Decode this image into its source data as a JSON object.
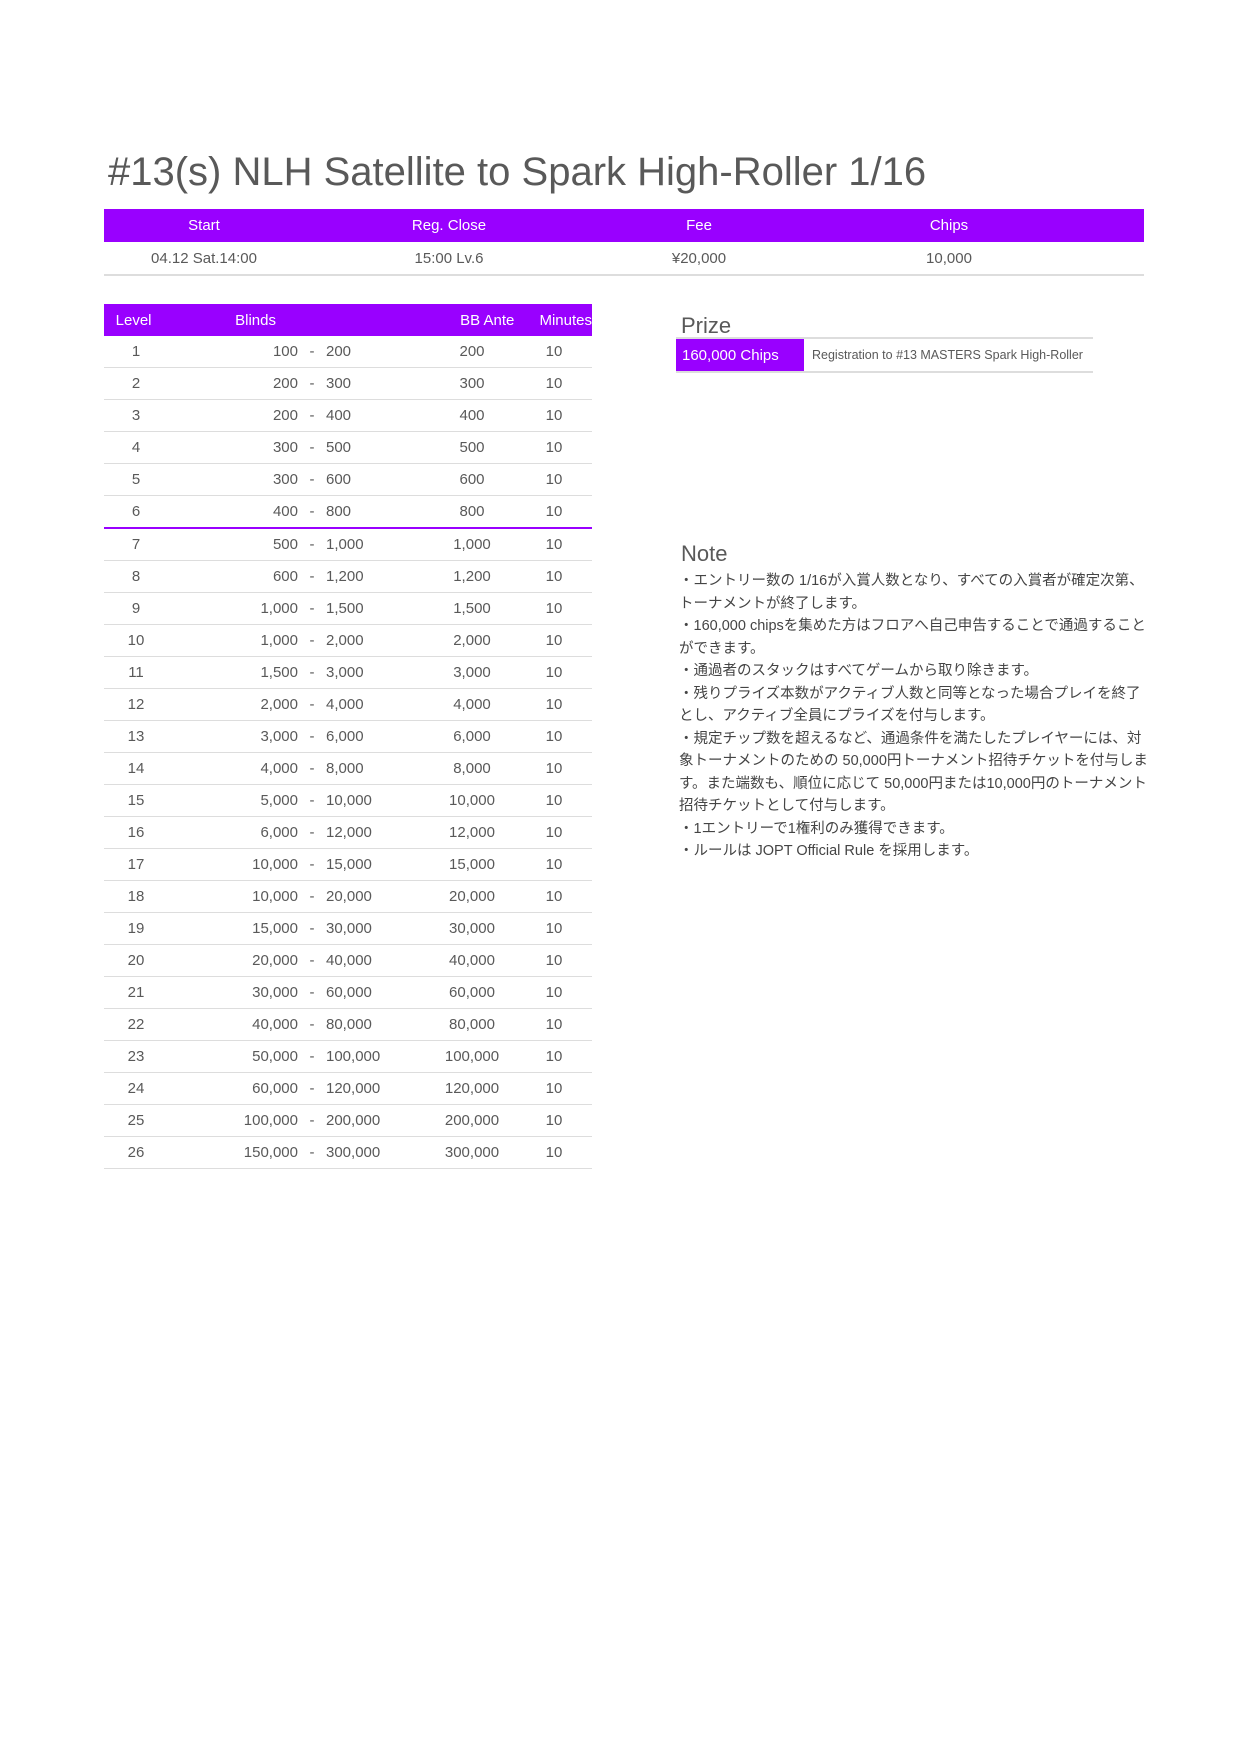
{
  "title": "#13(s) NLH Satellite to Spark High-Roller 1/16",
  "info": {
    "headers": [
      "Start",
      "Reg. Close",
      "Fee",
      "Chips"
    ],
    "values": [
      "04.12 Sat.14:00",
      "15:00 Lv.6",
      "¥20,000",
      "10,000"
    ]
  },
  "structure": {
    "headers": {
      "level": "Level",
      "blinds": "Blinds",
      "ante": "BB Ante",
      "minutes": "Minutes"
    },
    "reg_close_after_level": 6,
    "rows": [
      {
        "level": "1",
        "sb": "100",
        "bb": "200",
        "ante": "200",
        "minutes": "10"
      },
      {
        "level": "2",
        "sb": "200",
        "bb": "300",
        "ante": "300",
        "minutes": "10"
      },
      {
        "level": "3",
        "sb": "200",
        "bb": "400",
        "ante": "400",
        "minutes": "10"
      },
      {
        "level": "4",
        "sb": "300",
        "bb": "500",
        "ante": "500",
        "minutes": "10"
      },
      {
        "level": "5",
        "sb": "300",
        "bb": "600",
        "ante": "600",
        "minutes": "10"
      },
      {
        "level": "6",
        "sb": "400",
        "bb": "800",
        "ante": "800",
        "minutes": "10"
      },
      {
        "level": "7",
        "sb": "500",
        "bb": "1,000",
        "ante": "1,000",
        "minutes": "10"
      },
      {
        "level": "8",
        "sb": "600",
        "bb": "1,200",
        "ante": "1,200",
        "minutes": "10"
      },
      {
        "level": "9",
        "sb": "1,000",
        "bb": "1,500",
        "ante": "1,500",
        "minutes": "10"
      },
      {
        "level": "10",
        "sb": "1,000",
        "bb": "2,000",
        "ante": "2,000",
        "minutes": "10"
      },
      {
        "level": "11",
        "sb": "1,500",
        "bb": "3,000",
        "ante": "3,000",
        "minutes": "10"
      },
      {
        "level": "12",
        "sb": "2,000",
        "bb": "4,000",
        "ante": "4,000",
        "minutes": "10"
      },
      {
        "level": "13",
        "sb": "3,000",
        "bb": "6,000",
        "ante": "6,000",
        "minutes": "10"
      },
      {
        "level": "14",
        "sb": "4,000",
        "bb": "8,000",
        "ante": "8,000",
        "minutes": "10"
      },
      {
        "level": "15",
        "sb": "5,000",
        "bb": "10,000",
        "ante": "10,000",
        "minutes": "10"
      },
      {
        "level": "16",
        "sb": "6,000",
        "bb": "12,000",
        "ante": "12,000",
        "minutes": "10"
      },
      {
        "level": "17",
        "sb": "10,000",
        "bb": "15,000",
        "ante": "15,000",
        "minutes": "10"
      },
      {
        "level": "18",
        "sb": "10,000",
        "bb": "20,000",
        "ante": "20,000",
        "minutes": "10"
      },
      {
        "level": "19",
        "sb": "15,000",
        "bb": "30,000",
        "ante": "30,000",
        "minutes": "10"
      },
      {
        "level": "20",
        "sb": "20,000",
        "bb": "40,000",
        "ante": "40,000",
        "minutes": "10"
      },
      {
        "level": "21",
        "sb": "30,000",
        "bb": "60,000",
        "ante": "60,000",
        "minutes": "10"
      },
      {
        "level": "22",
        "sb": "40,000",
        "bb": "80,000",
        "ante": "80,000",
        "minutes": "10"
      },
      {
        "level": "23",
        "sb": "50,000",
        "bb": "100,000",
        "ante": "100,000",
        "minutes": "10"
      },
      {
        "level": "24",
        "sb": "60,000",
        "bb": "120,000",
        "ante": "120,000",
        "minutes": "10"
      },
      {
        "level": "25",
        "sb": "100,000",
        "bb": "200,000",
        "ante": "200,000",
        "minutes": "10"
      },
      {
        "level": "26",
        "sb": "150,000",
        "bb": "300,000",
        "ante": "300,000",
        "minutes": "10"
      }
    ],
    "separator": "-"
  },
  "prize": {
    "heading": "Prize",
    "chips": "160,000 Chips",
    "description": "Registration to #13 MASTERS Spark High-Roller"
  },
  "note": {
    "heading": "Note",
    "lines": [
      "・エントリー数の 1/16が入賞人数となり、すべての入賞者が確定次第、トーナメントが終了します。",
      "・160,000 chipsを集めた方はフロアへ自己申告することで通過することができます。",
      "・通過者のスタックはすべてゲームから取り除きます。",
      "・残りプライズ本数がアクティブ人数と同等となった場合プレイを終了とし、アクティブ全員にプライズを付与します。",
      "・規定チップ数を超えるなど、通過条件を満たしたプレイヤーには、対象トーナメントのための 50,000円トーナメント招待チケットを付与します。また端数も、順位に応じて 50,000円または10,000円のトーナメント招待チケットとして付与します。",
      "・1エントリーで1権利のみ獲得できます。",
      "・ルールは JOPT Official Rule を採用します。"
    ]
  },
  "colors": {
    "accent": "#9900ff",
    "text": "#595959",
    "rule": "#dddddd"
  }
}
